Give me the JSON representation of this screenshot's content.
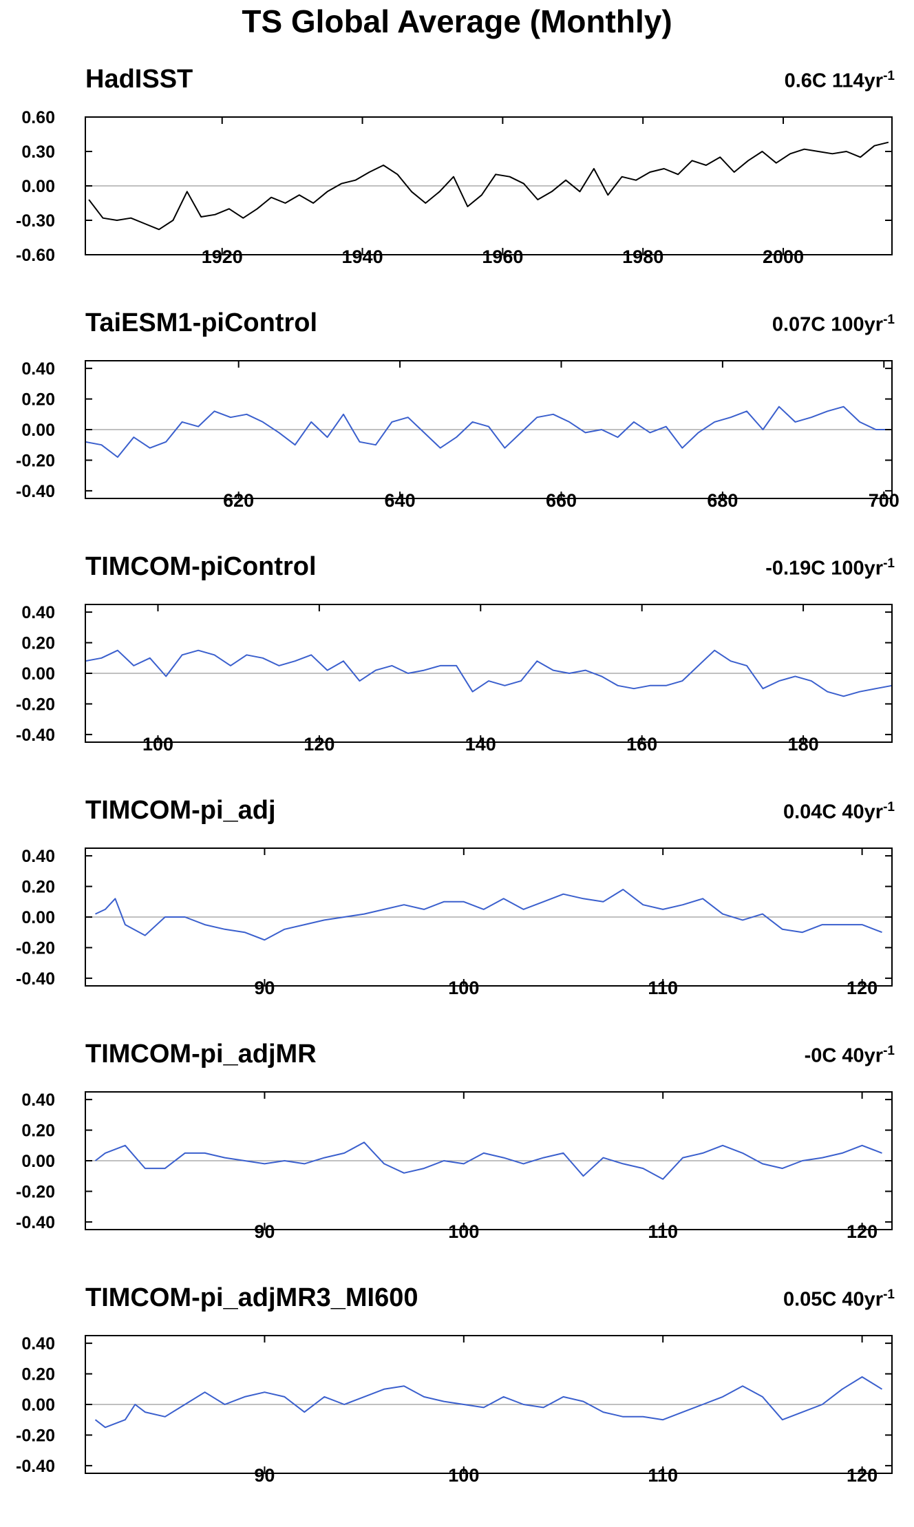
{
  "figure": {
    "title": "TS Global Average (Monthly)"
  },
  "chart_data": [
    {
      "type": "line",
      "title": "HadISST",
      "trend": {
        "value": "0.6C 114yr",
        "unit_exp": "-1"
      },
      "series_color": "#000000",
      "xlim": [
        1900.5,
        2015.5
      ],
      "ylim": [
        -0.6,
        0.6
      ],
      "yticks": [
        "0.60",
        "0.30",
        "0.00",
        "-0.30",
        "-0.60"
      ],
      "ytick_values": [
        0.6,
        0.3,
        0.0,
        -0.3,
        -0.6
      ],
      "xticks": [
        "1920",
        "1940",
        "1960",
        "1980",
        "2000"
      ],
      "xtick_values": [
        1920,
        1940,
        1960,
        1980,
        2000
      ],
      "zero_line": true,
      "x": [
        1901,
        1903,
        1905,
        1907,
        1909,
        1911,
        1913,
        1915,
        1917,
        1919,
        1921,
        1923,
        1925,
        1927,
        1929,
        1931,
        1933,
        1935,
        1937,
        1939,
        1941,
        1943,
        1945,
        1947,
        1949,
        1951,
        1953,
        1955,
        1957,
        1959,
        1961,
        1963,
        1965,
        1967,
        1969,
        1971,
        1973,
        1975,
        1977,
        1979,
        1981,
        1983,
        1985,
        1987,
        1989,
        1991,
        1993,
        1995,
        1997,
        1999,
        2001,
        2003,
        2005,
        2007,
        2009,
        2011,
        2013,
        2015
      ],
      "y": [
        -0.12,
        -0.28,
        -0.3,
        -0.28,
        -0.33,
        -0.38,
        -0.3,
        -0.05,
        -0.27,
        -0.25,
        -0.2,
        -0.28,
        -0.2,
        -0.1,
        -0.15,
        -0.08,
        -0.15,
        -0.05,
        0.02,
        0.05,
        0.12,
        0.18,
        0.1,
        -0.05,
        -0.15,
        -0.05,
        0.08,
        -0.18,
        -0.08,
        0.1,
        0.08,
        0.02,
        -0.12,
        -0.05,
        0.05,
        -0.05,
        0.15,
        -0.08,
        0.08,
        0.05,
        0.12,
        0.15,
        0.1,
        0.22,
        0.18,
        0.25,
        0.12,
        0.22,
        0.3,
        0.2,
        0.28,
        0.32,
        0.3,
        0.28,
        0.3,
        0.25,
        0.35,
        0.38
      ]
    },
    {
      "type": "line",
      "title": "TaiESM1-piControl",
      "trend": {
        "value": "0.07C 100yr",
        "unit_exp": "-1"
      },
      "series_color": "#3a5fcd",
      "xlim": [
        601,
        701
      ],
      "ylim": [
        -0.45,
        0.45
      ],
      "yticks": [
        "0.40",
        "0.20",
        "0.00",
        "-0.20",
        "-0.40"
      ],
      "ytick_values": [
        0.4,
        0.2,
        0.0,
        -0.2,
        -0.4
      ],
      "xticks": [
        "620",
        "640",
        "660",
        "680",
        "700"
      ],
      "xtick_values": [
        620,
        640,
        660,
        680,
        700
      ],
      "zero_line": true,
      "x": [
        601,
        603,
        605,
        607,
        609,
        611,
        613,
        615,
        617,
        619,
        621,
        623,
        625,
        627,
        629,
        631,
        633,
        635,
        637,
        639,
        641,
        643,
        645,
        647,
        649,
        651,
        653,
        655,
        657,
        659,
        661,
        663,
        665,
        667,
        669,
        671,
        673,
        675,
        677,
        679,
        681,
        683,
        685,
        687,
        689,
        691,
        693,
        695,
        697,
        699,
        701
      ],
      "y": [
        -0.08,
        -0.1,
        -0.18,
        -0.05,
        -0.12,
        -0.08,
        0.05,
        0.02,
        0.12,
        0.08,
        0.1,
        0.05,
        -0.02,
        -0.1,
        0.05,
        -0.05,
        0.1,
        -0.08,
        -0.1,
        0.05,
        0.08,
        -0.02,
        -0.12,
        -0.05,
        0.05,
        0.02,
        -0.12,
        -0.02,
        0.08,
        0.1,
        0.05,
        -0.02,
        0.0,
        -0.05,
        0.05,
        -0.02,
        0.02,
        -0.12,
        -0.02,
        0.05,
        0.08,
        0.12,
        0.0,
        0.15,
        0.05,
        0.08,
        0.12,
        0.15,
        0.05,
        0.0,
        0.0
      ]
    },
    {
      "type": "line",
      "title": "TIMCOM-piControl",
      "trend": {
        "value": "-0.19C 100yr",
        "unit_exp": "-1"
      },
      "series_color": "#3a5fcd",
      "xlim": [
        91,
        191
      ],
      "ylim": [
        -0.45,
        0.45
      ],
      "yticks": [
        "0.40",
        "0.20",
        "0.00",
        "-0.20",
        "-0.40"
      ],
      "ytick_values": [
        0.4,
        0.2,
        0.0,
        -0.2,
        -0.4
      ],
      "xticks": [
        "100",
        "120",
        "140",
        "160",
        "180"
      ],
      "xtick_values": [
        100,
        120,
        140,
        160,
        180
      ],
      "zero_line": true,
      "x": [
        91,
        93,
        95,
        97,
        99,
        101,
        103,
        105,
        107,
        109,
        111,
        113,
        115,
        117,
        119,
        121,
        123,
        125,
        127,
        129,
        131,
        133,
        135,
        137,
        139,
        141,
        143,
        145,
        147,
        149,
        151,
        153,
        155,
        157,
        159,
        161,
        163,
        165,
        167,
        169,
        171,
        173,
        175,
        177,
        179,
        181,
        183,
        185,
        187,
        189,
        191
      ],
      "y": [
        0.08,
        0.1,
        0.15,
        0.05,
        0.1,
        -0.02,
        0.12,
        0.15,
        0.12,
        0.05,
        0.12,
        0.1,
        0.05,
        0.08,
        0.12,
        0.02,
        0.08,
        -0.05,
        0.02,
        0.05,
        0.0,
        0.02,
        0.05,
        0.05,
        -0.12,
        -0.05,
        -0.08,
        -0.05,
        0.08,
        0.02,
        0.0,
        0.02,
        -0.02,
        -0.08,
        -0.1,
        -0.08,
        -0.08,
        -0.05,
        0.05,
        0.15,
        0.08,
        0.05,
        -0.1,
        -0.05,
        -0.02,
        -0.05,
        -0.12,
        -0.15,
        -0.12,
        -0.1,
        -0.08
      ]
    },
    {
      "type": "line",
      "title": "TIMCOM-pi_adj",
      "trend": {
        "value": "0.04C 40yr",
        "unit_exp": "-1"
      },
      "series_color": "#3a5fcd",
      "xlim": [
        81,
        121.5
      ],
      "ylim": [
        -0.45,
        0.45
      ],
      "yticks": [
        "0.40",
        "0.20",
        "0.00",
        "-0.20",
        "-0.40"
      ],
      "ytick_values": [
        0.4,
        0.2,
        0.0,
        -0.2,
        -0.4
      ],
      "xticks": [
        "90",
        "100",
        "110",
        "120"
      ],
      "xtick_values": [
        90,
        100,
        110,
        120
      ],
      "zero_line": true,
      "x": [
        81.5,
        82,
        82.5,
        83,
        84,
        85,
        86,
        87,
        88,
        89,
        90,
        91,
        92,
        93,
        94,
        95,
        96,
        97,
        98,
        99,
        100,
        101,
        102,
        103,
        104,
        105,
        106,
        107,
        108,
        109,
        110,
        111,
        112,
        113,
        114,
        115,
        116,
        117,
        118,
        119,
        120,
        121
      ],
      "y": [
        0.02,
        0.05,
        0.12,
        -0.05,
        -0.12,
        0.0,
        0.0,
        -0.05,
        -0.08,
        -0.1,
        -0.15,
        -0.08,
        -0.05,
        -0.02,
        0.0,
        0.02,
        0.05,
        0.08,
        0.05,
        0.1,
        0.1,
        0.05,
        0.12,
        0.05,
        0.1,
        0.15,
        0.12,
        0.1,
        0.18,
        0.08,
        0.05,
        0.08,
        0.12,
        0.02,
        -0.02,
        0.02,
        -0.08,
        -0.1,
        -0.05,
        -0.05,
        -0.05,
        -0.1
      ]
    },
    {
      "type": "line",
      "title": "TIMCOM-pi_adjMR",
      "trend": {
        "value": "-0C 40yr",
        "unit_exp": "-1"
      },
      "series_color": "#3a5fcd",
      "xlim": [
        81,
        121.5
      ],
      "ylim": [
        -0.45,
        0.45
      ],
      "yticks": [
        "0.40",
        "0.20",
        "0.00",
        "-0.20",
        "-0.40"
      ],
      "ytick_values": [
        0.4,
        0.2,
        0.0,
        -0.2,
        -0.4
      ],
      "xticks": [
        "90",
        "100",
        "110",
        "120"
      ],
      "xtick_values": [
        90,
        100,
        110,
        120
      ],
      "zero_line": true,
      "x": [
        81.5,
        82,
        83,
        84,
        85,
        86,
        87,
        88,
        89,
        90,
        91,
        92,
        93,
        94,
        95,
        95.5,
        96,
        97,
        98,
        99,
        100,
        101,
        102,
        103,
        104,
        105,
        106,
        107,
        108,
        109,
        110,
        111,
        112,
        113,
        114,
        115,
        116,
        117,
        118,
        119,
        120,
        121
      ],
      "y": [
        0.0,
        0.05,
        0.1,
        -0.05,
        -0.05,
        0.05,
        0.05,
        0.02,
        0.0,
        -0.02,
        0.0,
        -0.02,
        0.02,
        0.05,
        0.12,
        0.05,
        -0.02,
        -0.08,
        -0.05,
        0.0,
        -0.02,
        0.05,
        0.02,
        -0.02,
        0.02,
        0.05,
        -0.1,
        0.02,
        -0.02,
        -0.05,
        -0.12,
        0.02,
        0.05,
        0.1,
        0.05,
        -0.02,
        -0.05,
        0.0,
        0.02,
        0.05,
        0.1,
        0.05
      ]
    },
    {
      "type": "line",
      "title": "TIMCOM-pi_adjMR3_MI600",
      "trend": {
        "value": "0.05C 40yr",
        "unit_exp": "-1"
      },
      "series_color": "#3a5fcd",
      "xlim": [
        81,
        121.5
      ],
      "ylim": [
        -0.45,
        0.45
      ],
      "yticks": [
        "0.40",
        "0.20",
        "0.00",
        "-0.20",
        "-0.40"
      ],
      "ytick_values": [
        0.4,
        0.2,
        0.0,
        -0.2,
        -0.4
      ],
      "xticks": [
        "90",
        "100",
        "110",
        "120"
      ],
      "xtick_values": [
        90,
        100,
        110,
        120
      ],
      "zero_line": true,
      "x": [
        81.5,
        82,
        83,
        83.5,
        84,
        85,
        86,
        87,
        88,
        89,
        90,
        91,
        92,
        93,
        94,
        95,
        96,
        97,
        98,
        99,
        100,
        101,
        102,
        103,
        104,
        105,
        106,
        107,
        108,
        109,
        110,
        111,
        112,
        113,
        114,
        115,
        116,
        117,
        118,
        119,
        120,
        121
      ],
      "y": [
        -0.1,
        -0.15,
        -0.1,
        0.0,
        -0.05,
        -0.08,
        0.0,
        0.08,
        0.0,
        0.05,
        0.08,
        0.05,
        -0.05,
        0.05,
        0.0,
        0.05,
        0.1,
        0.12,
        0.05,
        0.02,
        0.0,
        -0.02,
        0.05,
        0.0,
        -0.02,
        0.05,
        0.02,
        -0.05,
        -0.08,
        -0.08,
        -0.1,
        -0.05,
        0.0,
        0.05,
        0.12,
        0.05,
        -0.1,
        -0.05,
        0.0,
        0.1,
        0.18,
        0.1
      ]
    }
  ]
}
